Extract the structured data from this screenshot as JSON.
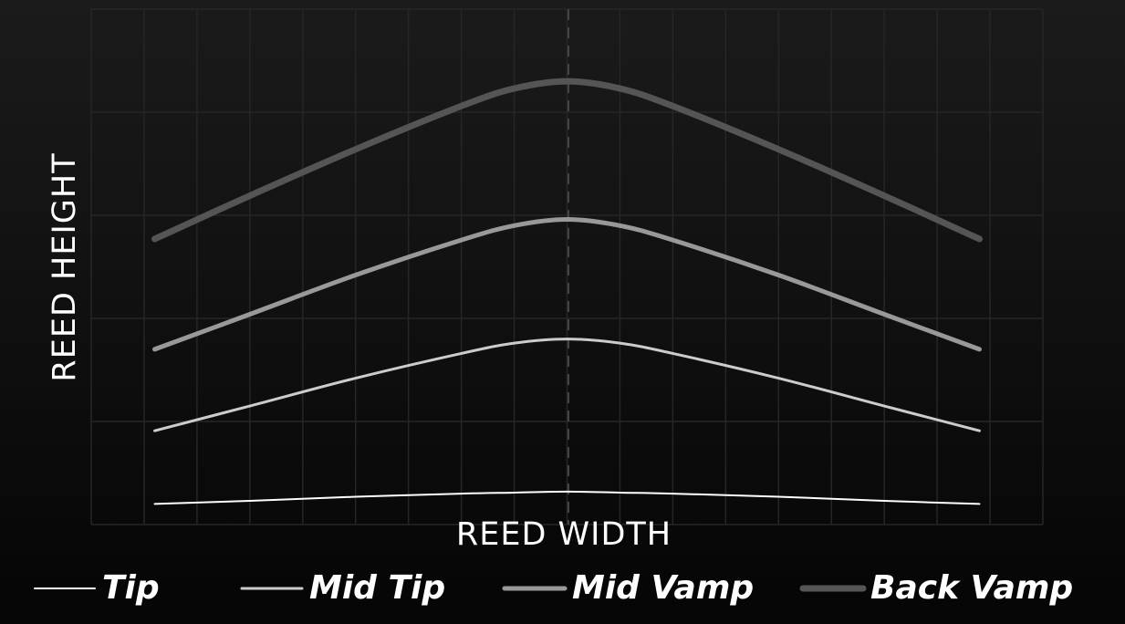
{
  "chart_data": {
    "type": "line",
    "x_label": "REED WIDTH",
    "y_label": "REED HEIGHT",
    "x": [
      1.2,
      3,
      5,
      7,
      8,
      9,
      10,
      11,
      13,
      15,
      16.8
    ],
    "xlim": [
      0,
      18
    ],
    "ylim": [
      0,
      5
    ],
    "grid": true,
    "legend": "bottom",
    "series": [
      {
        "name": "Tip",
        "color": "#ffffff",
        "line_width": 2,
        "values": [
          0.2,
          0.23,
          0.27,
          0.3,
          0.31,
          0.32,
          0.31,
          0.3,
          0.27,
          0.23,
          0.2
        ]
      },
      {
        "name": "Mid Tip",
        "color": "#cccccc",
        "line_width": 3,
        "values": [
          0.91,
          1.15,
          1.42,
          1.66,
          1.76,
          1.8,
          1.76,
          1.66,
          1.42,
          1.15,
          0.91
        ]
      },
      {
        "name": "Mid Vamp",
        "color": "#999999",
        "line_width": 5,
        "values": [
          1.7,
          2.04,
          2.42,
          2.76,
          2.9,
          2.96,
          2.9,
          2.76,
          2.42,
          2.04,
          1.7
        ]
      },
      {
        "name": "Back Vamp",
        "color": "#555555",
        "line_width": 7,
        "values": [
          2.77,
          3.19,
          3.64,
          4.06,
          4.23,
          4.3,
          4.23,
          4.06,
          3.64,
          3.19,
          2.77
        ]
      }
    ]
  }
}
